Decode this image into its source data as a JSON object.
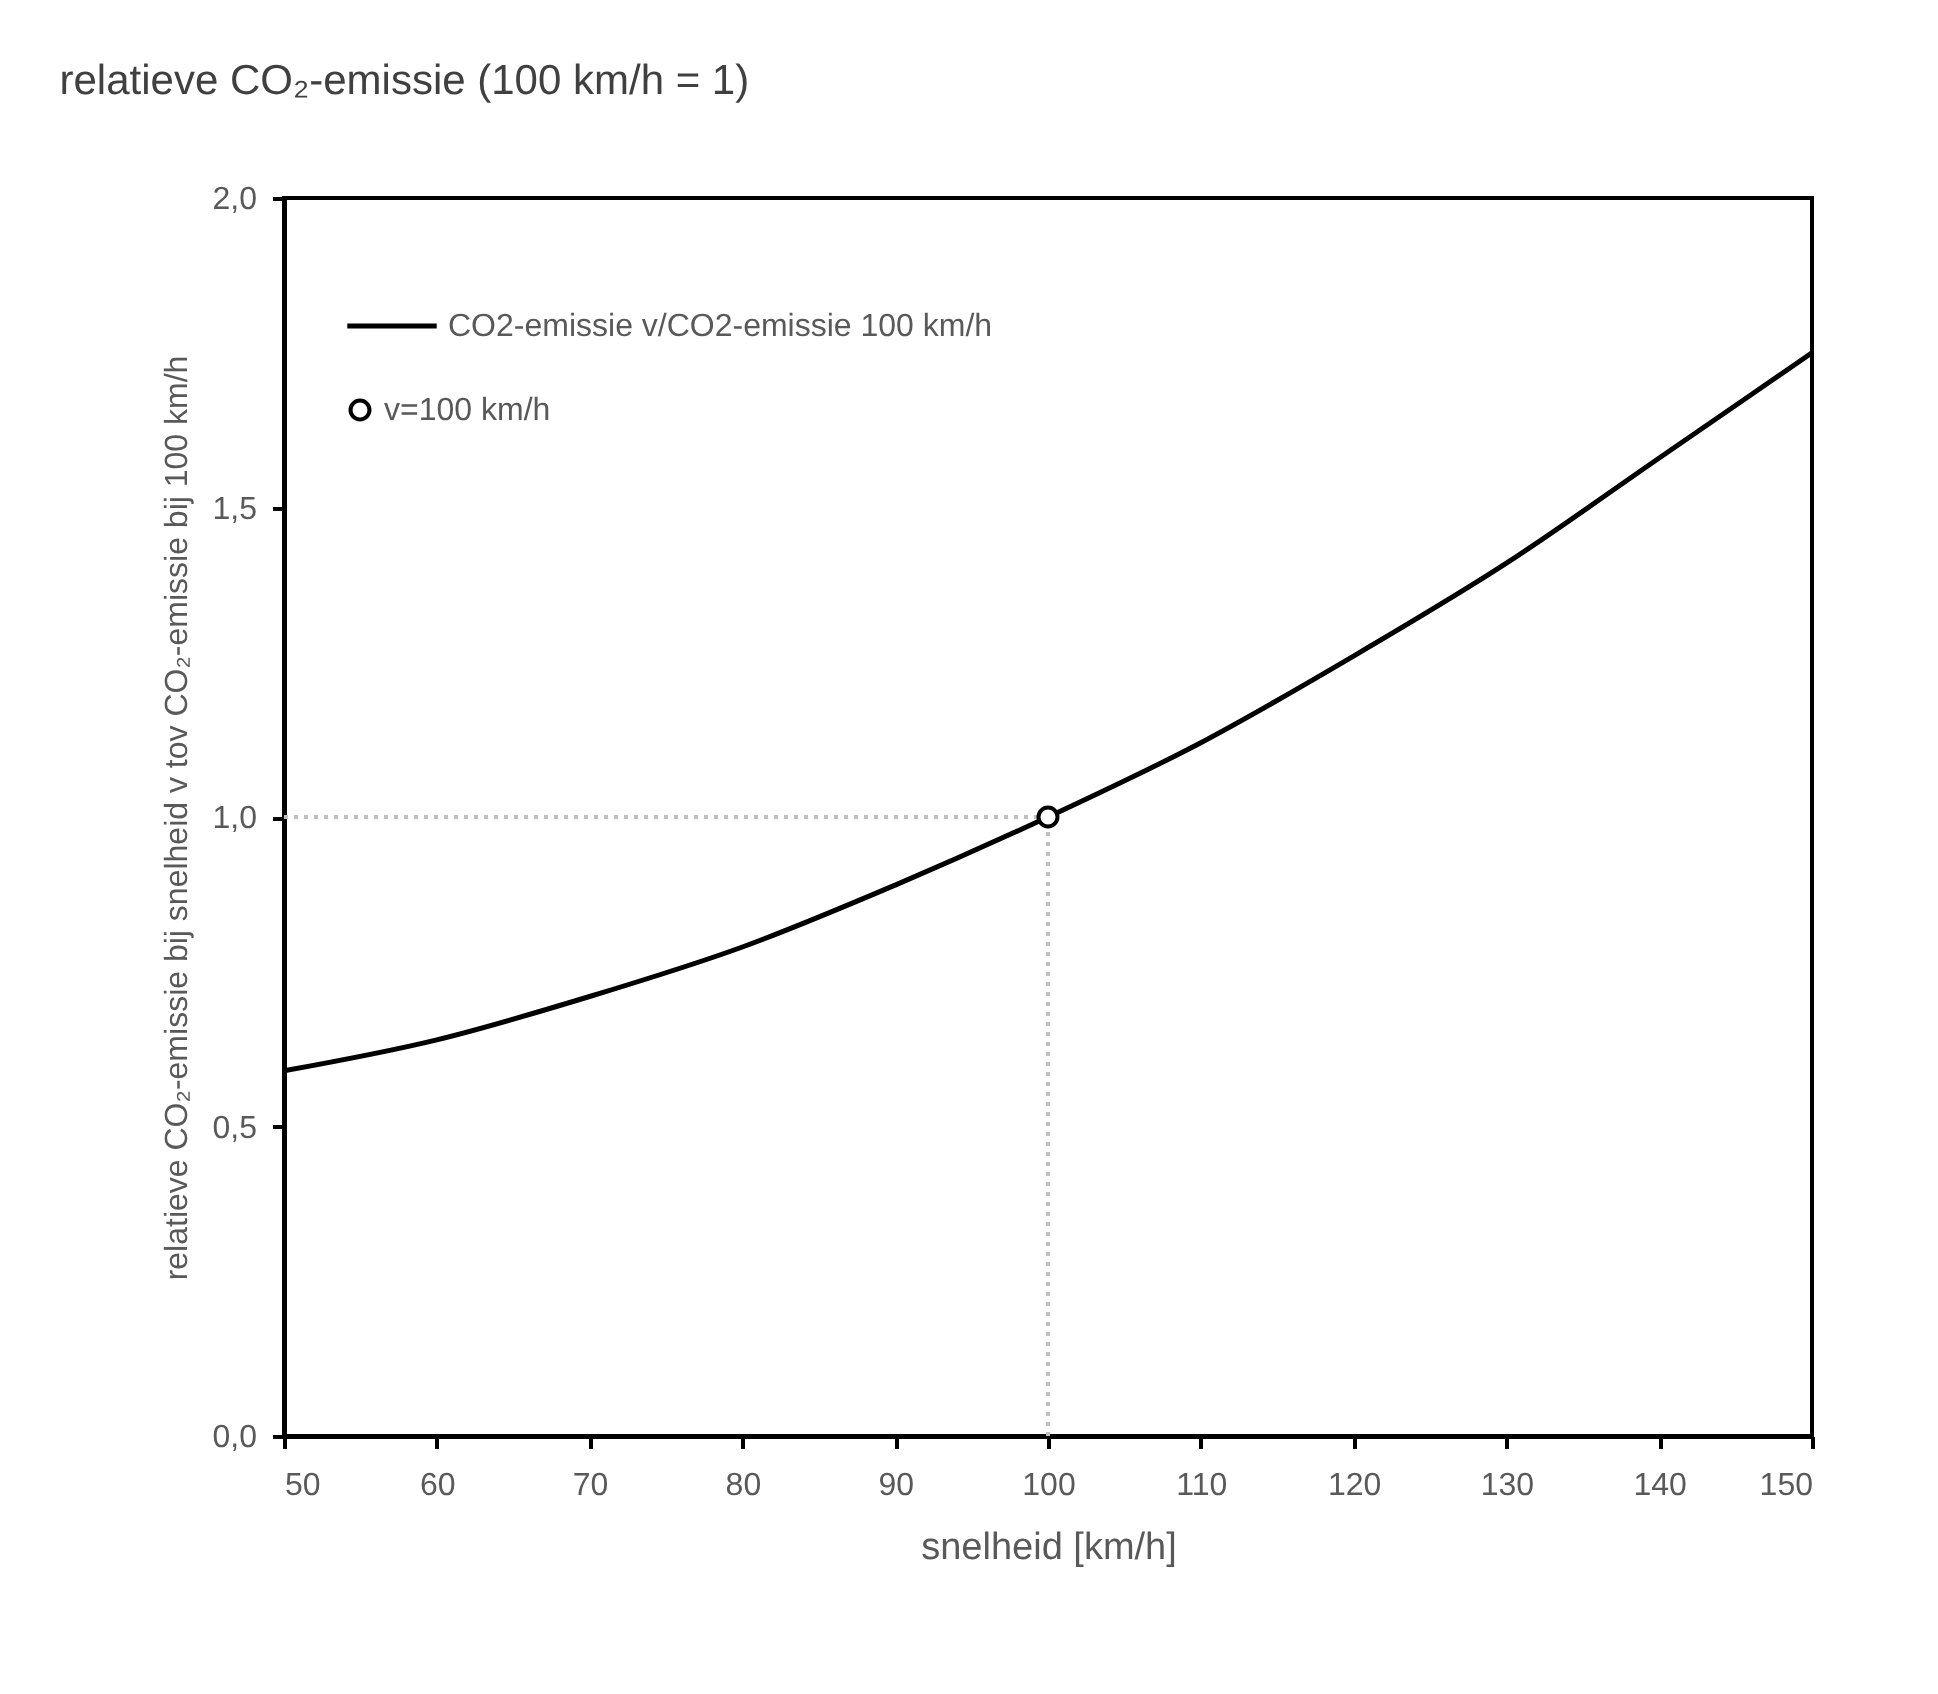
{
  "chart_data": {
    "type": "line",
    "title": "relatieve CO₂-emissie (100 km/h = 1)",
    "xlabel": "snelheid [km/h]",
    "ylabel": "relatieve CO₂-emissie bij snelheid v tov CO₂-emissie bij 100 km/h",
    "x": [
      50,
      60,
      70,
      80,
      90,
      100,
      110,
      120,
      130,
      140,
      150
    ],
    "series": [
      {
        "name": "CO2-emissie v/CO2-emissie 100 km/h",
        "color": "#000000",
        "marker": "none",
        "line_style": "solid",
        "values": [
          0.59,
          0.64,
          0.71,
          0.79,
          0.89,
          1.0,
          1.12,
          1.26,
          1.41,
          1.58,
          1.75
        ]
      },
      {
        "name": "v=100 km/h",
        "type": "scatter",
        "color": "#000000",
        "marker": "circle",
        "x": [
          100
        ],
        "values": [
          1.0
        ]
      }
    ],
    "ref_lines": [
      {
        "axis": "x",
        "value": 100,
        "color": "#bfbfbf",
        "line_style": "dotted"
      },
      {
        "axis": "y",
        "value": 1.0,
        "color": "#bfbfbf",
        "line_style": "dotted"
      }
    ],
    "xlim": [
      50,
      150
    ],
    "xticks": [
      50,
      60,
      70,
      80,
      90,
      100,
      110,
      120,
      130,
      140,
      150
    ],
    "ylim": [
      0,
      2
    ],
    "yticks": [
      {
        "value": 0,
        "label": "0,0"
      },
      {
        "value": 0.5,
        "label": "0,5"
      },
      {
        "value": 1,
        "label": "1,0"
      },
      {
        "value": 1.5,
        "label": "1,5"
      },
      {
        "value": 2,
        "label": "2,0"
      }
    ],
    "grid": false,
    "legend": "top left"
  }
}
